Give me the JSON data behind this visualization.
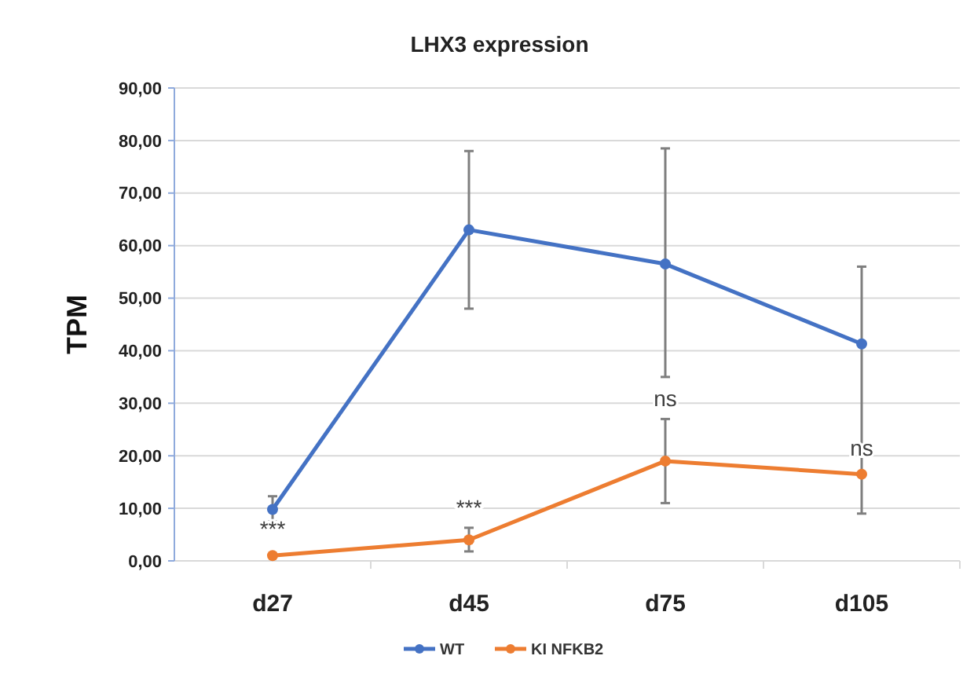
{
  "chart_data": {
    "type": "line",
    "title": "LHX3 expression",
    "ylabel": "TPM",
    "categories": [
      "d27",
      "d45",
      "d75",
      "d105"
    ],
    "series": [
      {
        "name": "WT",
        "color": "#4472c4",
        "values": [
          9.8,
          63,
          56.5,
          41.3
        ],
        "errors": [
          [
            7.5,
            12.3
          ],
          [
            48,
            78
          ],
          [
            35,
            78.5
          ],
          [
            9,
            56
          ]
        ]
      },
      {
        "name": "KI NFKB2",
        "color": "#ed7d31",
        "values": [
          1,
          4,
          19,
          16.5
        ],
        "errors": [
          null,
          [
            1.8,
            6.3
          ],
          [
            11,
            27
          ],
          null
        ]
      }
    ],
    "ylim": [
      0,
      90
    ],
    "yticks": [
      {
        "value": 0,
        "label": "0,00"
      },
      {
        "value": 10,
        "label": "10,00"
      },
      {
        "value": 20,
        "label": "20,00"
      },
      {
        "value": 30,
        "label": "30,00"
      },
      {
        "value": 40,
        "label": "40,00"
      },
      {
        "value": 50,
        "label": "50,00"
      },
      {
        "value": 60,
        "label": "60,00"
      },
      {
        "value": 70,
        "label": "70,00"
      },
      {
        "value": 80,
        "label": "80,00"
      },
      {
        "value": 90,
        "label": "90,00"
      }
    ],
    "annotations": [
      "***",
      "***",
      "ns",
      "ns"
    ],
    "grid": "y",
    "legend": "bottom",
    "marker": "circle",
    "line_style": "solid"
  }
}
